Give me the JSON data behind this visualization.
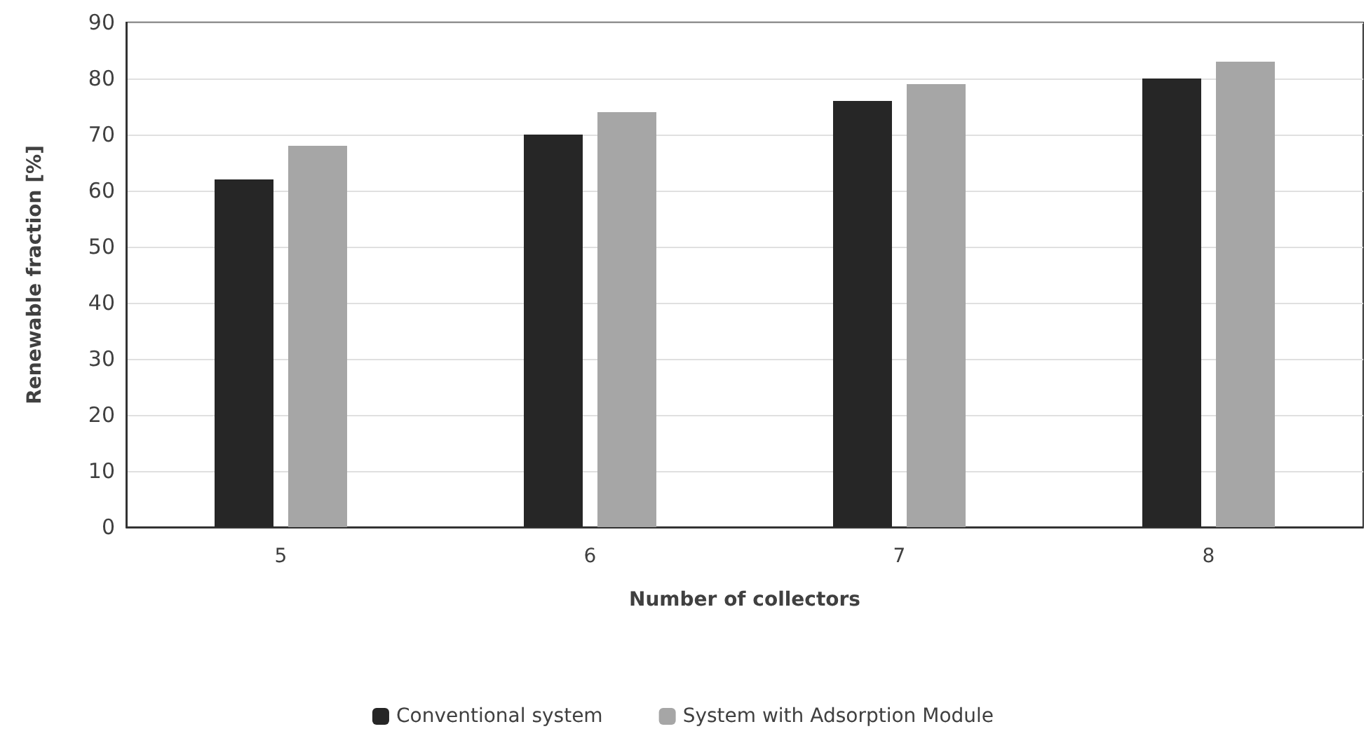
{
  "chart_data": {
    "type": "bar",
    "xlabel": "Number of collectors",
    "ylabel": "Renewable fraction [%]",
    "categories": [
      "5",
      "6",
      "7",
      "8"
    ],
    "series": [
      {
        "name": "Conventional system",
        "color": "#262626",
        "values": [
          62,
          70,
          76,
          80
        ]
      },
      {
        "name": "System with Adsorption Module",
        "color": "#a6a6a6",
        "values": [
          68,
          74,
          79,
          83
        ]
      }
    ],
    "ylim": [
      0,
      90
    ],
    "yticks": [
      0,
      10,
      20,
      30,
      40,
      50,
      60,
      70,
      80,
      90
    ],
    "grid": "y",
    "legend": "bottom"
  }
}
